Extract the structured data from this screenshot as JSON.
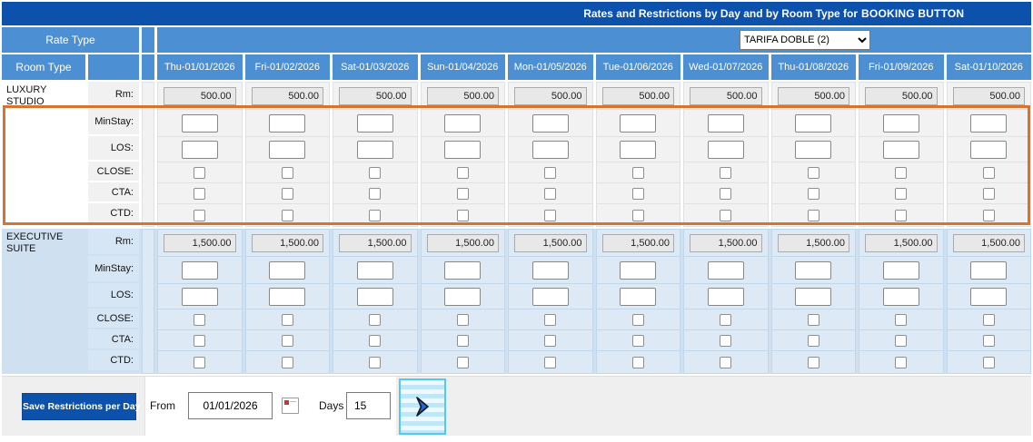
{
  "header": {
    "title_prefix": "Rates and Restrictions by Day and by Room Type for",
    "title_bold": "BOOKING BUTTON",
    "rate_type_label": "Rate Type",
    "room_type_label": "Room Type",
    "rate_type_selected": "TARIFA DOBLE (2)"
  },
  "columns": [
    "Thu-01/01/2026",
    "Fri-01/02/2026",
    "Sat-01/03/2026",
    "Sun-01/04/2026",
    "Mon-01/05/2026",
    "Tue-01/06/2026",
    "Wed-01/07/2026",
    "Thu-01/08/2026",
    "Fri-01/09/2026",
    "Sat-01/10/2026"
  ],
  "row_labels": {
    "rm": "Rm:",
    "min_stay": "MinStay:",
    "los": "LOS:",
    "close": "CLOSE:",
    "cta": "CTA:",
    "ctd": "CTD:"
  },
  "rooms": [
    {
      "name": "LUXURY STUDIO",
      "rates": [
        "500.00",
        "500.00",
        "500.00",
        "500.00",
        "500.00",
        "500.00",
        "500.00",
        "500.00",
        "500.00",
        "500.00"
      ],
      "min_stay": [
        "",
        "",
        "",
        "",
        "",
        "",
        "",
        "",
        "",
        ""
      ],
      "los": [
        "",
        "",
        "",
        "",
        "",
        "",
        "",
        "",
        "",
        ""
      ],
      "close": [
        false,
        false,
        false,
        false,
        false,
        false,
        false,
        false,
        false,
        false
      ],
      "cta": [
        false,
        false,
        false,
        false,
        false,
        false,
        false,
        false,
        false,
        false
      ],
      "ctd": [
        false,
        false,
        false,
        false,
        false,
        false,
        false,
        false,
        false,
        false
      ],
      "restrictions_highlighted": true
    },
    {
      "name": "EXECUTIVE SUITE",
      "rates": [
        "1,500.00",
        "1,500.00",
        "1,500.00",
        "1,500.00",
        "1,500.00",
        "1,500.00",
        "1,500.00",
        "1,500.00",
        "1,500.00",
        "1,500.00"
      ],
      "min_stay": [
        "",
        "",
        "",
        "",
        "",
        "",
        "",
        "",
        "",
        ""
      ],
      "los": [
        "",
        "",
        "",
        "",
        "",
        "",
        "",
        "",
        "",
        ""
      ],
      "close": [
        false,
        false,
        false,
        false,
        false,
        false,
        false,
        false,
        false,
        false
      ],
      "cta": [
        false,
        false,
        false,
        false,
        false,
        false,
        false,
        false,
        false,
        false
      ],
      "ctd": [
        false,
        false,
        false,
        false,
        false,
        false,
        false,
        false,
        false,
        false
      ],
      "restrictions_highlighted": false
    }
  ],
  "footer": {
    "save_button_label": "Save Restrictions per Day",
    "from_label": "From",
    "from_value": "01/01/2026",
    "calendar_icon": "calendar-picker",
    "days_label": "Days",
    "days_value": "15",
    "next_icon": "chevron-right"
  },
  "colors": {
    "title_bar": "#0c51ab",
    "header_blue": "#4d8fd3",
    "exec_section_bg": "#cfe1f1",
    "highlight_border": "#d8732f",
    "next_button_border": "#53c9f1"
  }
}
